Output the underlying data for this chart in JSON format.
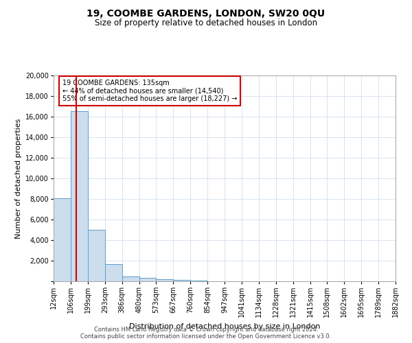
{
  "title": "19, COOMBE GARDENS, LONDON, SW20 0QU",
  "subtitle": "Size of property relative to detached houses in London",
  "xlabel": "Distribution of detached houses by size in London",
  "ylabel": "Number of detached properties",
  "bar_color": "#ccdded",
  "bar_edge_color": "#5b9ec9",
  "grid_color": "#c8d8e8",
  "annotation_text": "19 COOMBE GARDENS: 135sqm\n← 44% of detached houses are smaller (14,540)\n55% of semi-detached houses are larger (18,227) →",
  "annotation_box_color": "#ffffff",
  "annotation_border_color": "#cc0000",
  "red_line_x": 135,
  "footer1": "Contains HM Land Registry data © Crown copyright and database right 2024.",
  "footer2": "Contains public sector information licensed under the Open Government Licence v3.0.",
  "bin_edges": [
    12,
    106,
    199,
    293,
    386,
    480,
    573,
    667,
    760,
    854,
    947,
    1041,
    1134,
    1228,
    1321,
    1415,
    1508,
    1602,
    1695,
    1789,
    1882
  ],
  "bar_heights": [
    8050,
    16500,
    5000,
    1700,
    500,
    350,
    200,
    150,
    80,
    0,
    0,
    0,
    0,
    0,
    0,
    0,
    0,
    0,
    0,
    0
  ],
  "ylim": [
    0,
    20000
  ],
  "yticks": [
    0,
    2000,
    4000,
    6000,
    8000,
    10000,
    12000,
    14000,
    16000,
    18000,
    20000
  ],
  "background_color": "#ffffff",
  "title_fontsize": 10,
  "subtitle_fontsize": 8.5,
  "tick_fontsize": 7,
  "ylabel_fontsize": 8,
  "xlabel_fontsize": 8,
  "footer_fontsize": 6
}
